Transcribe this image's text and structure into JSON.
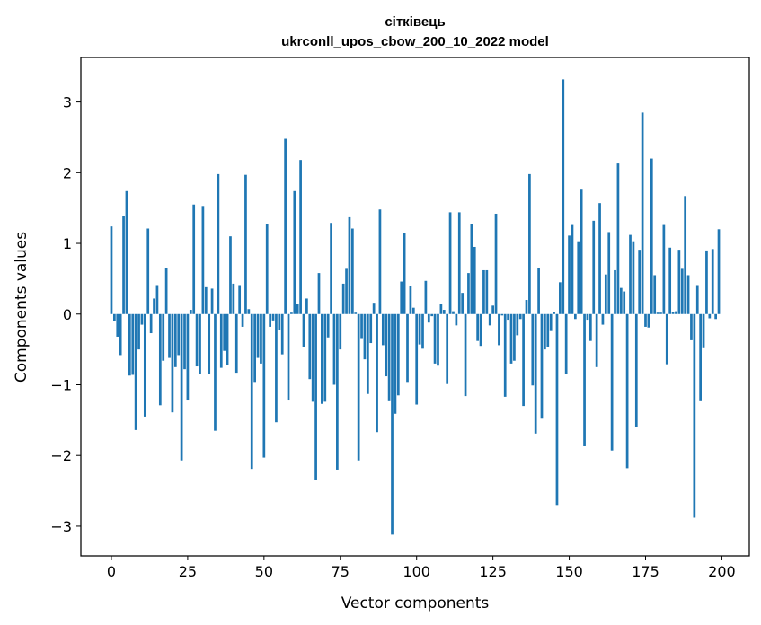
{
  "chart_data": {
    "type": "bar",
    "title_line1": "сітківець",
    "title_line2": "ukrconll_upos_cbow_200_10_2022 model",
    "xlabel": "Vector components",
    "ylabel": "Components values",
    "xlim": [
      -10,
      209
    ],
    "ylim": [
      -3.42,
      3.63
    ],
    "xticks": [
      0,
      25,
      50,
      75,
      100,
      125,
      150,
      175,
      200
    ],
    "yticks": [
      -3,
      -2,
      -1,
      0,
      1,
      2,
      3
    ],
    "ytick_labels": [
      "−3",
      "−2",
      "−1",
      "0",
      "1",
      "2",
      "3"
    ],
    "bar_color": "#1f77b4",
    "grid": false,
    "legend": false,
    "x": [
      0,
      1,
      2,
      3,
      4,
      5,
      6,
      7,
      8,
      9,
      10,
      11,
      12,
      13,
      14,
      15,
      16,
      17,
      18,
      19,
      20,
      21,
      22,
      23,
      24,
      25,
      26,
      27,
      28,
      29,
      30,
      31,
      32,
      33,
      34,
      35,
      36,
      37,
      38,
      39,
      40,
      41,
      42,
      43,
      44,
      45,
      46,
      47,
      48,
      49,
      50,
      51,
      52,
      53,
      54,
      55,
      56,
      57,
      58,
      59,
      60,
      61,
      62,
      63,
      64,
      65,
      66,
      67,
      68,
      69,
      70,
      71,
      72,
      73,
      74,
      75,
      76,
      77,
      78,
      79,
      80,
      81,
      82,
      83,
      84,
      85,
      86,
      87,
      88,
      89,
      90,
      91,
      92,
      93,
      94,
      95,
      96,
      97,
      98,
      99,
      100,
      101,
      102,
      103,
      104,
      105,
      106,
      107,
      108,
      109,
      110,
      111,
      112,
      113,
      114,
      115,
      116,
      117,
      118,
      119,
      120,
      121,
      122,
      123,
      124,
      125,
      126,
      127,
      128,
      129,
      130,
      131,
      132,
      133,
      134,
      135,
      136,
      137,
      138,
      139,
      140,
      141,
      142,
      143,
      144,
      145,
      146,
      147,
      148,
      149,
      150,
      151,
      152,
      153,
      154,
      155,
      156,
      157,
      158,
      159,
      160,
      161,
      162,
      163,
      164,
      165,
      166,
      167,
      168,
      169,
      170,
      171,
      172,
      173,
      174,
      175,
      176,
      177,
      178,
      179,
      180,
      181,
      182,
      183,
      184,
      185,
      186,
      187,
      188,
      189,
      190,
      191,
      192,
      193,
      194,
      195,
      196,
      197,
      198,
      199
    ],
    "values": [
      1.24,
      -0.1,
      -0.32,
      -0.58,
      1.39,
      1.74,
      -0.87,
      -0.86,
      -1.64,
      -0.5,
      -0.15,
      -1.45,
      1.21,
      -0.27,
      0.22,
      0.41,
      -1.29,
      -0.66,
      0.65,
      -0.62,
      -1.39,
      -0.75,
      -0.58,
      -2.07,
      -0.78,
      -1.21,
      0.06,
      1.55,
      -0.74,
      -0.85,
      1.53,
      0.38,
      -0.85,
      0.36,
      -1.65,
      1.98,
      -0.76,
      -0.52,
      -0.72,
      1.1,
      0.43,
      -0.83,
      0.41,
      -0.18,
      1.97,
      0.07,
      -2.19,
      -0.96,
      -0.62,
      -0.7,
      -2.03,
      1.28,
      -0.18,
      -0.09,
      -1.53,
      -0.23,
      -0.57,
      2.48,
      -1.21,
      0.02,
      1.74,
      0.14,
      2.18,
      -0.46,
      0.22,
      -0.92,
      -1.24,
      -2.34,
      0.58,
      -1.27,
      -1.24,
      -0.33,
      1.29,
      -1.0,
      -2.2,
      -0.5,
      0.43,
      0.64,
      1.37,
      1.21,
      0.02,
      -2.07,
      -0.34,
      -0.64,
      -1.13,
      -0.41,
      0.16,
      -1.67,
      1.48,
      -0.44,
      -0.88,
      -1.22,
      -3.12,
      -1.41,
      -1.15,
      0.46,
      1.15,
      -0.96,
      0.4,
      0.09,
      -1.28,
      -0.43,
      -0.49,
      0.47,
      -0.12,
      -0.03,
      -0.7,
      -0.73,
      0.14,
      0.06,
      -0.99,
      1.44,
      0.04,
      -0.16,
      1.44,
      0.3,
      -1.16,
      0.58,
      1.27,
      0.95,
      -0.38,
      -0.45,
      0.62,
      0.62,
      -0.16,
      0.12,
      1.42,
      -0.44,
      -0.02,
      -1.17,
      -0.08,
      -0.7,
      -0.66,
      -0.3,
      -0.07,
      -1.3,
      0.2,
      1.98,
      -1.01,
      -1.69,
      0.65,
      -1.48,
      -0.5,
      -0.46,
      -0.24,
      0.03,
      -2.7,
      0.45,
      3.32,
      -0.85,
      1.11,
      1.26,
      -0.07,
      1.03,
      1.76,
      -1.87,
      -0.08,
      -0.38,
      1.32,
      -0.75,
      1.57,
      -0.15,
      0.56,
      1.16,
      -1.93,
      0.62,
      2.13,
      0.37,
      0.32,
      -2.18,
      1.12,
      1.03,
      -1.6,
      0.91,
      2.85,
      -0.18,
      -0.19,
      2.2,
      0.55,
      0.02,
      0.02,
      1.26,
      -0.71,
      0.94,
      0.03,
      0.04,
      0.91,
      0.64,
      1.67,
      0.55,
      -0.37,
      -2.88,
      0.41,
      -1.22,
      -0.47,
      0.9,
      -0.06,
      0.92,
      -0.07,
      1.2
    ]
  }
}
